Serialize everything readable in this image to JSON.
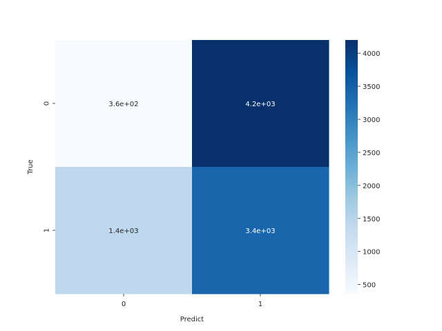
{
  "chart_data": {
    "type": "heatmap",
    "title": "",
    "xlabel": "Predict",
    "ylabel": "True",
    "x_categories": [
      "0",
      "1"
    ],
    "y_categories": [
      "0",
      "1"
    ],
    "values": [
      [
        360,
        4200
      ],
      [
        1400,
        3400
      ]
    ],
    "annotations": [
      [
        "3.6e+02",
        "4.2e+03"
      ],
      [
        "1.4e+03",
        "3.4e+03"
      ]
    ],
    "colormap": "Blues",
    "colorbar": {
      "range": [
        360,
        4200
      ],
      "ticks": [
        500,
        1000,
        1500,
        2000,
        2500,
        3000,
        3500,
        4000
      ],
      "tick_labels": [
        "500",
        "1000",
        "1500",
        "2000",
        "2500",
        "3000",
        "3500",
        "4000"
      ]
    },
    "annotation_colors": {
      "light": "#ffffff",
      "dark": "#262626"
    }
  }
}
